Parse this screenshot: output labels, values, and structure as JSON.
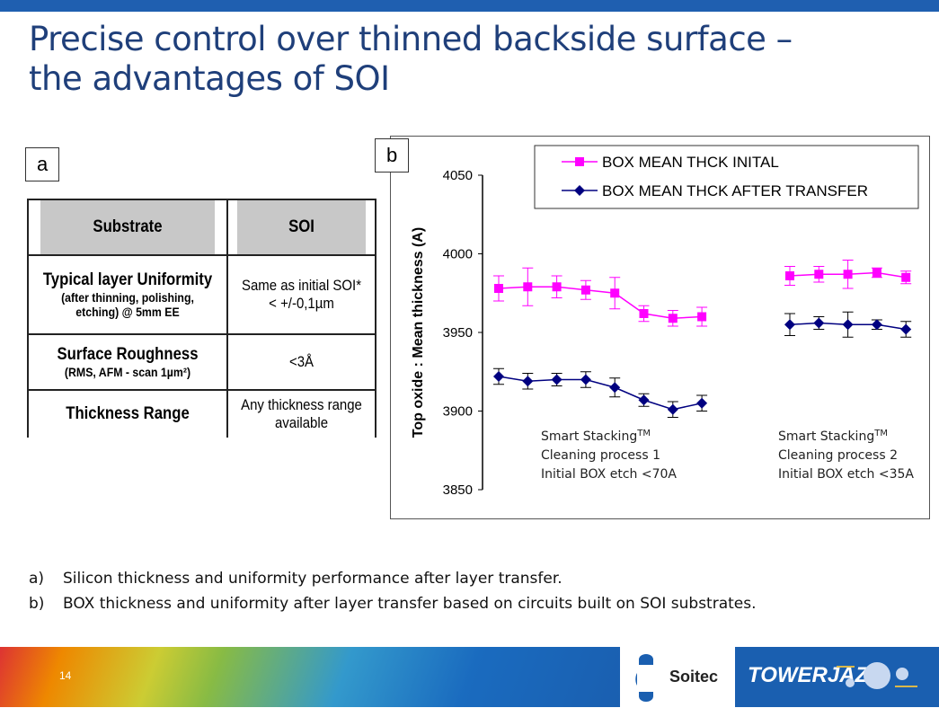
{
  "slide": {
    "title_line1": "Precise control over thinned backside surface –",
    "title_line2": "the advantages of SOI",
    "page_number": "14"
  },
  "panel_labels": {
    "a": "a",
    "b": "b"
  },
  "table": {
    "headers": [
      "Substrate",
      "SOI"
    ],
    "rows": [
      {
        "name_main": "Typical layer Uniformity",
        "name_sub": "(after thinning, polishing, etching) @ 5mm EE",
        "value": "Same as initial SOI* < +/-0,1µm"
      },
      {
        "name_main": "Surface Roughness",
        "name_sub": "(RMS, AFM - scan 1µm²)",
        "value": "<3Å"
      },
      {
        "name_main": "Thickness Range",
        "name_sub": "",
        "value": "Any thickness range available"
      }
    ]
  },
  "chart_data": {
    "type": "line",
    "ylabel": "Top oxide : Mean thickness (A)",
    "xlabel": "",
    "ylim": [
      3850,
      4050
    ],
    "yticks": [
      3850,
      3900,
      3950,
      4000,
      4050
    ],
    "grid": false,
    "legend_placement": "top-right",
    "series": [
      {
        "name": "BOX MEAN THCK INITAL",
        "color": "#ff00ff",
        "marker": "square",
        "groups": [
          {
            "values": [
              3978,
              3979,
              3979,
              3977,
              3975,
              3962,
              3959,
              3960
            ],
            "errors": [
              8,
              12,
              7,
              6,
              10,
              5,
              5,
              6
            ]
          },
          {
            "values": [
              3986,
              3987,
              3987,
              3988,
              3985
            ],
            "errors": [
              6,
              5,
              9,
              3,
              4
            ]
          }
        ]
      },
      {
        "name": "BOX MEAN THCK AFTER TRANSFER",
        "color": "#000080",
        "marker": "diamond",
        "groups": [
          {
            "values": [
              3922,
              3919,
              3920,
              3920,
              3915,
              3907,
              3901,
              3905
            ],
            "errors": [
              5,
              5,
              4,
              5,
              6,
              4,
              5,
              5
            ]
          },
          {
            "values": [
              3955,
              3956,
              3955,
              3955,
              3952
            ],
            "errors": [
              7,
              4,
              8,
              3,
              5
            ]
          }
        ]
      }
    ],
    "annotations": [
      {
        "lines": [
          "Smart Stacking",
          "Cleaning process 1",
          "Initial BOX etch <70A"
        ],
        "sup": "TM"
      },
      {
        "lines": [
          "Smart Stacking",
          "Cleaning process 2",
          "Initial BOX etch <35A"
        ],
        "sup": "TM"
      }
    ]
  },
  "captions": [
    {
      "marker": "a)",
      "text": "Silicon thickness and uniformity performance after layer transfer."
    },
    {
      "marker": "b)",
      "text": "BOX thickness and uniformity after layer transfer based on circuits built on SOI substrates."
    }
  ],
  "logos": {
    "soitec": "Soitec",
    "towerjazz": "TOWERJAZZ"
  }
}
